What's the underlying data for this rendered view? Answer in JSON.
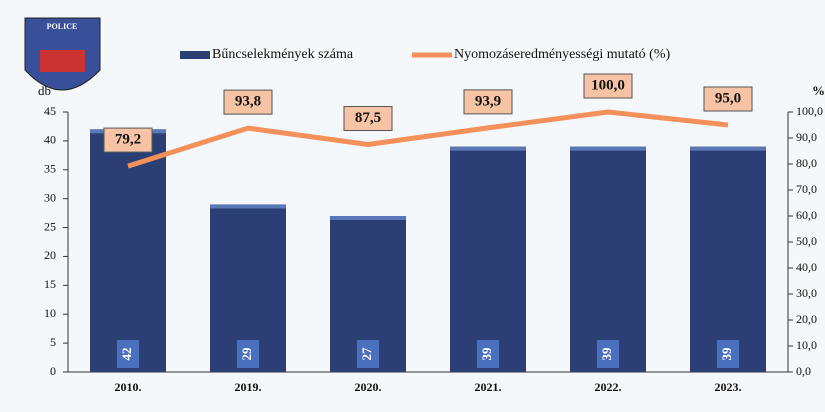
{
  "logo": {
    "text": "POLICE"
  },
  "chart_data": {
    "type": "bar",
    "y_label": "db",
    "y2_label": "%",
    "categories": [
      "2010.",
      "2019.",
      "2020.",
      "2021.",
      "2022.",
      "2023."
    ],
    "series": [
      {
        "name": "Bűncselekmények száma",
        "type": "bar",
        "color": "#2b3f75",
        "values": [
          42,
          29,
          27,
          39,
          39,
          39
        ]
      },
      {
        "name": "Nyomozáseredményességi mutató (%)",
        "type": "line",
        "axis": "y2",
        "color": "#f4915a",
        "values": [
          79.2,
          93.8,
          87.5,
          93.9,
          100.0,
          95.0
        ],
        "value_labels": [
          "79,2",
          "93,8",
          "87,5",
          "93,9",
          "100,0",
          "95,0"
        ]
      }
    ],
    "ylim": [
      0,
      45
    ],
    "yticks": [
      0,
      5,
      10,
      15,
      20,
      25,
      30,
      35,
      40,
      45
    ],
    "y2lim": [
      0,
      100
    ],
    "y2ticks": [
      {
        "value": 0,
        "label": "0,0"
      },
      {
        "value": 10,
        "label": "10,0"
      },
      {
        "value": 20,
        "label": "20,0"
      },
      {
        "value": 30,
        "label": "30,0"
      },
      {
        "value": 40,
        "label": "40,0"
      },
      {
        "value": 50,
        "label": "50,0"
      },
      {
        "value": 60,
        "label": "60,0"
      },
      {
        "value": 70,
        "label": "70,0"
      },
      {
        "value": 80,
        "label": "80,0"
      },
      {
        "value": 90,
        "label": "90,0"
      },
      {
        "value": 100,
        "label": "100,0"
      }
    ]
  }
}
